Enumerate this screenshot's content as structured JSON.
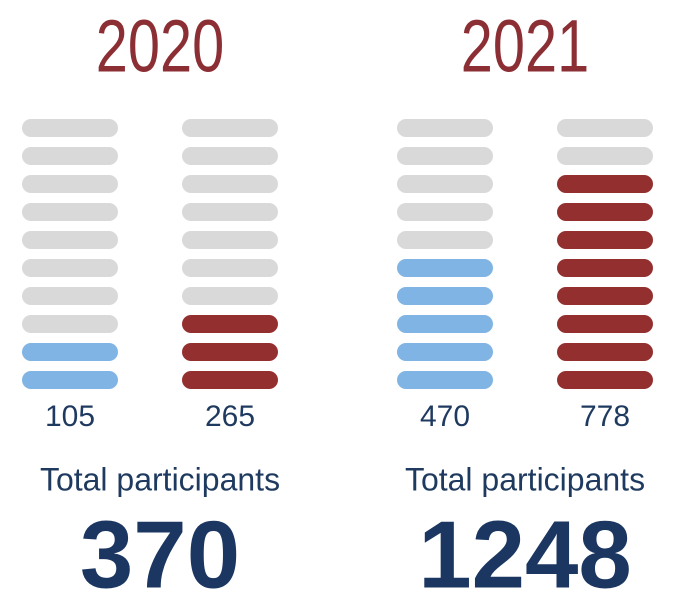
{
  "chart_data": [
    {
      "type": "pictogram",
      "title": "2020",
      "values": [
        105,
        265
      ],
      "colors": [
        "#80b4e4",
        "#93302f"
      ],
      "ylim": [
        0,
        1000
      ],
      "total_label": "Total participants",
      "total": 370
    },
    {
      "type": "pictogram",
      "title": "2021",
      "values": [
        470,
        778
      ],
      "colors": [
        "#80b4e4",
        "#93302f"
      ],
      "ylim": [
        0,
        1000
      ],
      "total_label": "Total participants",
      "total": 1248
    }
  ]
}
